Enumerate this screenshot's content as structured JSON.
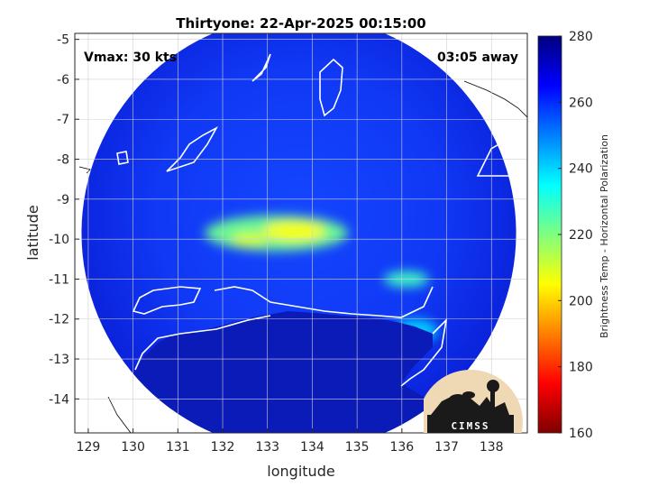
{
  "chart_data": {
    "type": "heatmap",
    "title": "Thirtyone: 22-Apr-2025 00:15:00",
    "xlabel": "longitude",
    "ylabel": "latitude",
    "xlim": [
      128.7,
      138.8
    ],
    "ylim": [
      -14.85,
      -4.85
    ],
    "x_ticks": [
      129,
      130,
      131,
      132,
      133,
      134,
      135,
      136,
      137,
      138
    ],
    "y_ticks": [
      -5,
      -6,
      -7,
      -8,
      -9,
      -10,
      -11,
      -12,
      -13,
      -14
    ],
    "grid": true,
    "colorbar": {
      "label": "Brightness Temp - Horizontal Polarization",
      "range": [
        160,
        280
      ],
      "ticks": [
        280,
        260,
        240,
        220,
        200,
        180,
        160
      ]
    },
    "annotations": {
      "vmax": "Vmax: 30 kts",
      "time_away": "03:05 away"
    },
    "swath": {
      "center_lon": 133.7,
      "center_lat": -9.85,
      "radius_deg": 4.85
    },
    "features": [
      {
        "lon": 133.2,
        "lat": -9.85,
        "rx": 1.6,
        "ry": 0.45,
        "value": 222
      },
      {
        "lon": 133.6,
        "lat": -9.8,
        "rx": 0.7,
        "ry": 0.25,
        "value": 205
      },
      {
        "lon": 132.6,
        "lat": -10.0,
        "rx": 0.4,
        "ry": 0.15,
        "value": 208
      },
      {
        "lon": 136.1,
        "lat": -11.0,
        "rx": 0.5,
        "ry": 0.2,
        "value": 228
      },
      {
        "lon": 136.3,
        "lat": -12.3,
        "rx": 0.5,
        "ry": 0.3,
        "value": 240
      }
    ],
    "logo_text": "CIMSS"
  }
}
